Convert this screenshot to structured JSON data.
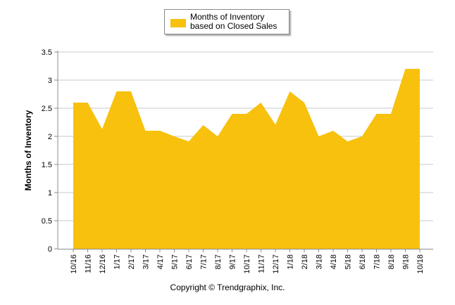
{
  "chart_data": {
    "type": "area",
    "title": "",
    "ylabel": "Months of Inventory",
    "xlabel": "",
    "ylim": [
      0,
      3.5
    ],
    "yticks": [
      "0",
      "0.5",
      "1",
      "1.5",
      "2",
      "2.5",
      "3",
      "3.5"
    ],
    "grid": true,
    "legend_position": "top-center",
    "categories": [
      "10/16",
      "11/16",
      "12/16",
      "1/17",
      "2/17",
      "3/17",
      "4/17",
      "5/17",
      "6/17",
      "7/17",
      "8/17",
      "9/17",
      "10/17",
      "11/17",
      "12/17",
      "1/18",
      "2/18",
      "3/18",
      "4/18",
      "5/18",
      "6/18",
      "7/18",
      "8/18",
      "9/18",
      "10/18"
    ],
    "series": [
      {
        "name": "Months of Inventory based on Closed Sales",
        "color": "#f7c10d",
        "values": [
          2.6,
          2.6,
          2.13,
          2.8,
          2.8,
          2.1,
          2.1,
          2.0,
          1.91,
          2.2,
          2.0,
          2.4,
          2.4,
          2.6,
          2.21,
          2.8,
          2.6,
          2.0,
          2.1,
          1.91,
          2.0,
          2.4,
          2.4,
          3.2,
          3.2
        ]
      }
    ]
  },
  "legend": {
    "label": "Months of Inventory based on Closed Sales"
  },
  "footer": {
    "copyright": "Copyright © Trendgraphix, Inc."
  },
  "colors": {
    "grid": "#c8c8c8",
    "axis": "#8c8c8c",
    "area": "#f7c10d"
  }
}
